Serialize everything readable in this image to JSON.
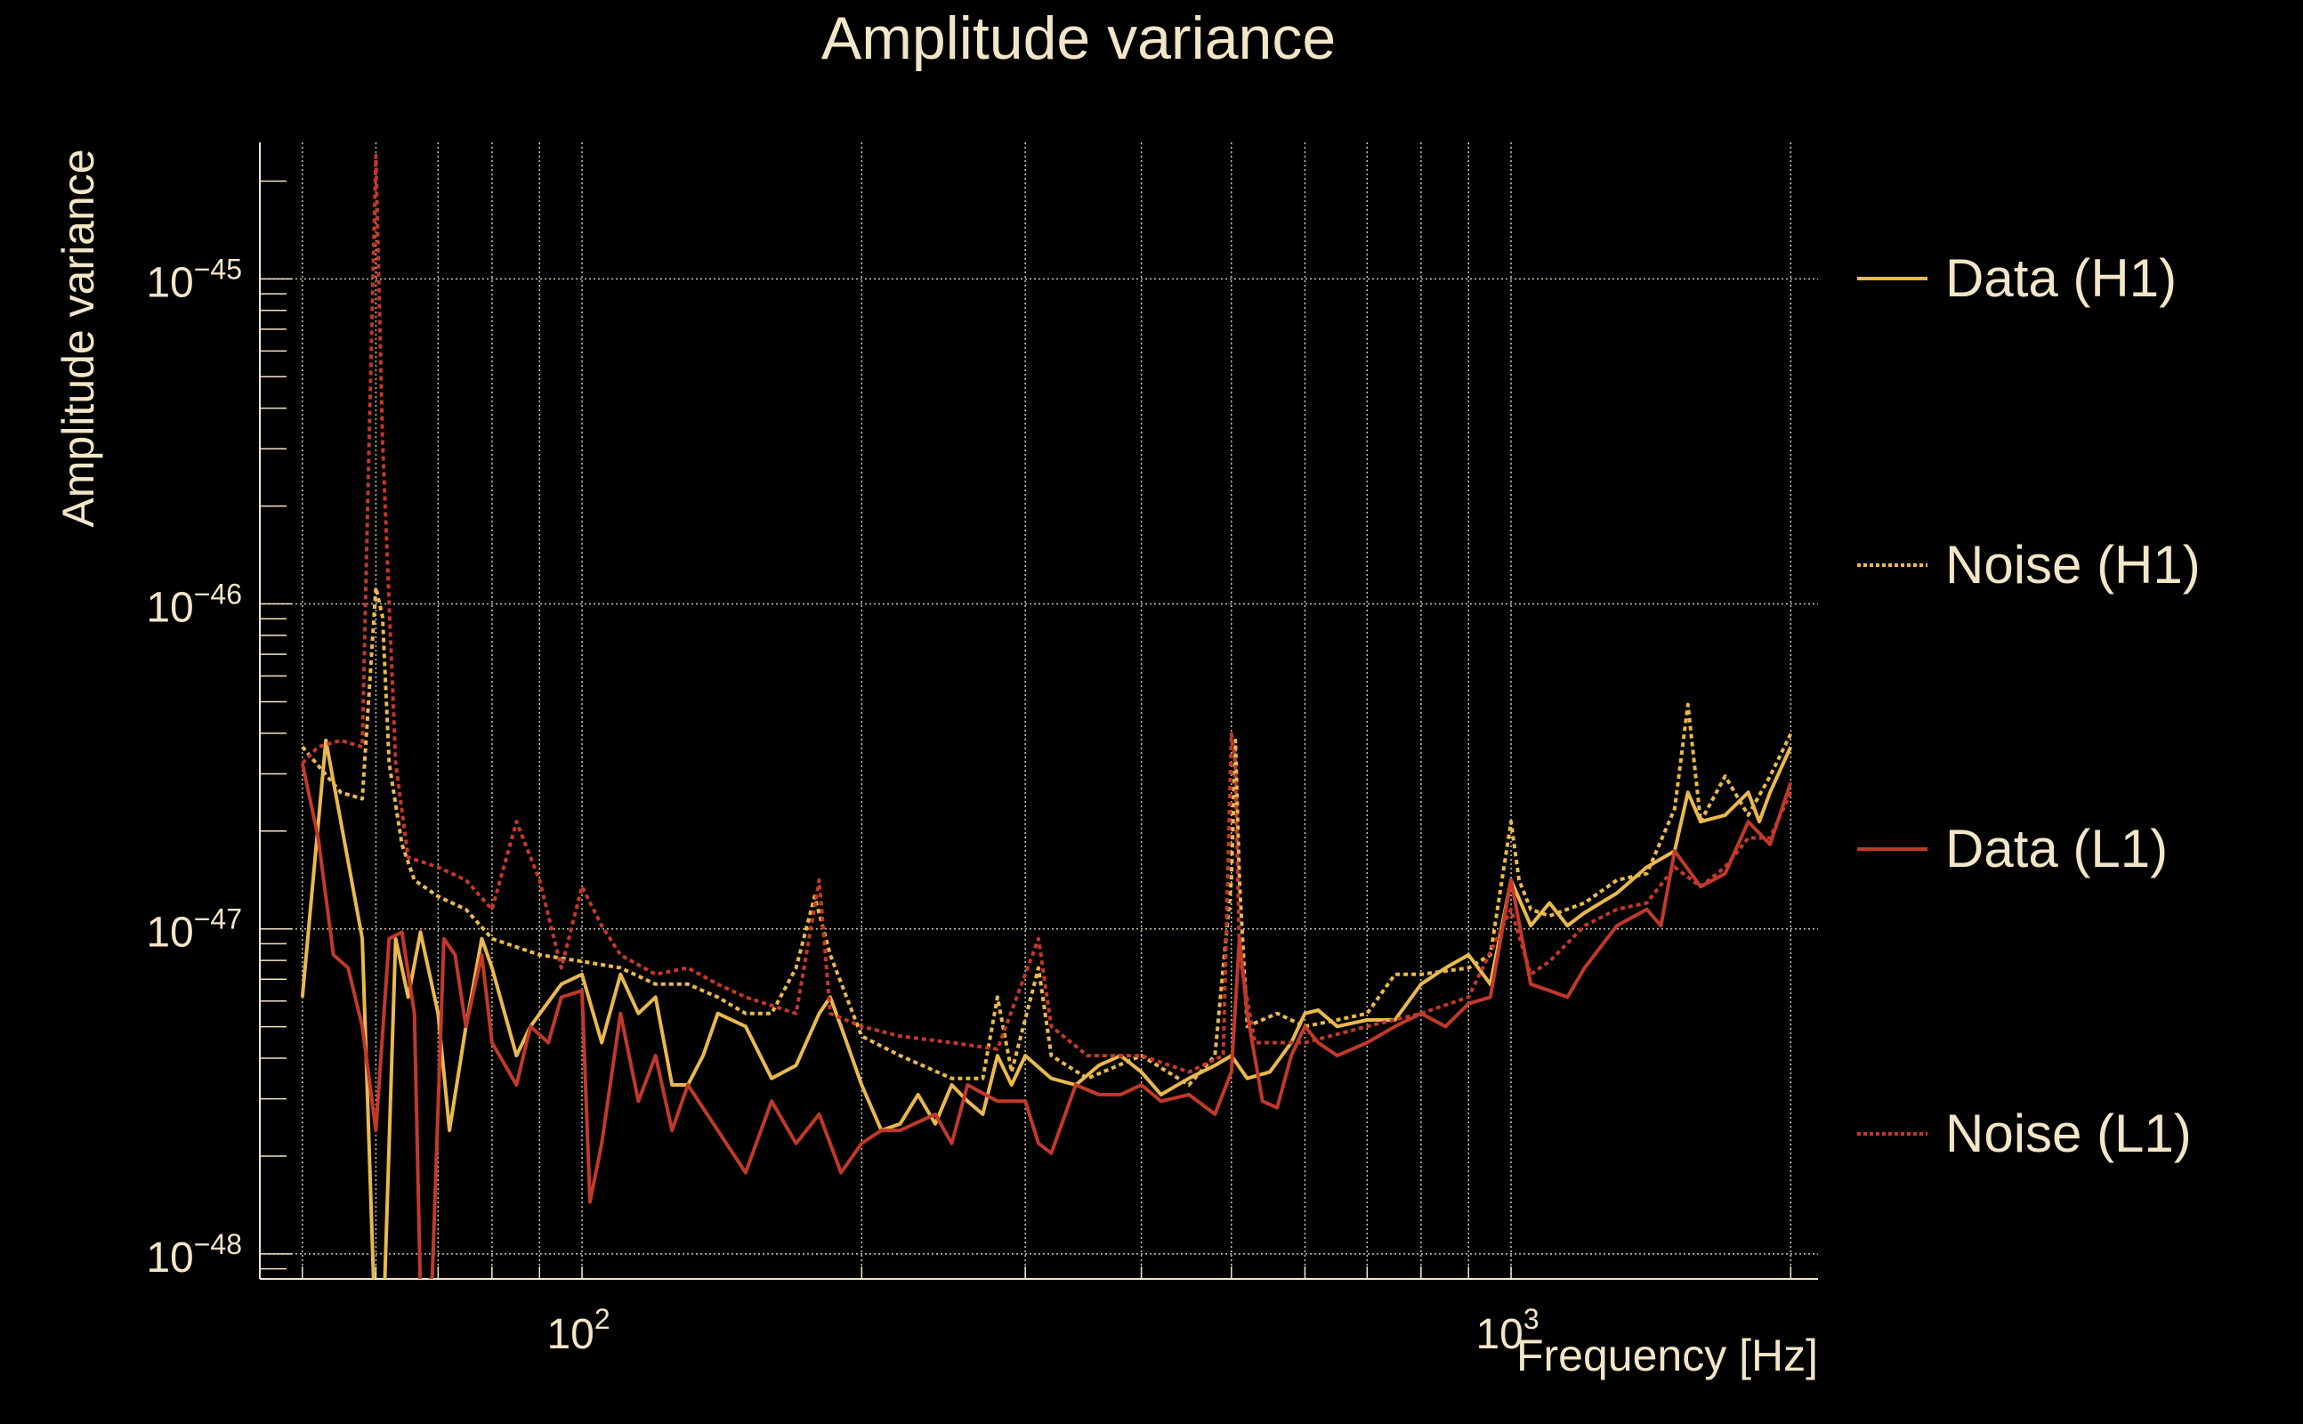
{
  "chart_data": {
    "type": "line",
    "title": "Amplitude variance",
    "xlabel": "Frequency [Hz]",
    "ylabel": "Amplitude variance",
    "xscale": "log",
    "yscale": "log",
    "xlim": [
      45,
      2140
    ],
    "ylim_log10": [
      -48.077,
      -44.58
    ],
    "grid": true,
    "legend_position": "right",
    "colors": {
      "text": "#f3e6c8",
      "h1": "#e9b94e",
      "l1": "#c0392b",
      "grid": "#cfc6b0"
    },
    "x_ticks": [
      {
        "value": 100,
        "base": "10",
        "exp": "2"
      },
      {
        "value": 1000,
        "base": "10",
        "exp": "3"
      }
    ],
    "y_ticks": [
      {
        "log10": -45,
        "base": "10",
        "exp": "−45"
      },
      {
        "log10": -46,
        "base": "10",
        "exp": "−46"
      },
      {
        "log10": -47,
        "base": "10",
        "exp": "−47"
      },
      {
        "log10": -48,
        "base": "10",
        "exp": "−48"
      }
    ],
    "value_note": "y values given as log10(amplitude variance)",
    "series": [
      {
        "name": "Data (H1)",
        "color": "#e9b94e",
        "style": "solid",
        "x": [
          50,
          53,
          55,
          58,
          60,
          61,
          63,
          65,
          67,
          70,
          72,
          75,
          78,
          80,
          85,
          88,
          95,
          100,
          105,
          110,
          115,
          120,
          125,
          130,
          135,
          140,
          150,
          160,
          170,
          180,
          185,
          190,
          200,
          210,
          220,
          230,
          240,
          250,
          260,
          270,
          280,
          290,
          300,
          320,
          340,
          360,
          380,
          400,
          420,
          450,
          480,
          500,
          520,
          550,
          580,
          600,
          620,
          650,
          700,
          750,
          800,
          850,
          900,
          950,
          1000,
          1050,
          1100,
          1150,
          1200,
          1300,
          1400,
          1500,
          1550,
          1600,
          1700,
          1800,
          1850,
          1900,
          2000
        ],
        "log10_y": [
          -47.21,
          -46.42,
          -46.67,
          -47.03,
          -48.3,
          -48.3,
          -47.03,
          -47.21,
          -47.01,
          -47.26,
          -47.62,
          -47.3,
          -47.03,
          -47.12,
          -47.39,
          -47.3,
          -47.17,
          -47.14,
          -47.35,
          -47.14,
          -47.26,
          -47.21,
          -47.48,
          -47.48,
          -47.39,
          -47.26,
          -47.3,
          -47.46,
          -47.42,
          -47.26,
          -47.21,
          -47.3,
          -47.48,
          -47.62,
          -47.6,
          -47.51,
          -47.6,
          -47.48,
          -47.53,
          -47.57,
          -47.39,
          -47.48,
          -47.39,
          -47.46,
          -47.48,
          -47.42,
          -47.39,
          -47.44,
          -47.51,
          -47.46,
          -47.42,
          -47.39,
          -47.46,
          -47.44,
          -47.35,
          -47.26,
          -47.25,
          -47.3,
          -47.28,
          -47.28,
          -47.17,
          -47.12,
          -47.08,
          -47.17,
          -46.85,
          -46.99,
          -46.92,
          -46.99,
          -46.95,
          -46.89,
          -46.81,
          -46.76,
          -46.58,
          -46.67,
          -46.65,
          -46.58,
          -46.67,
          -46.58,
          -46.44
        ]
      },
      {
        "name": "Noise (H1)",
        "color": "#e9b94e",
        "style": "dotted",
        "x": [
          50,
          55,
          58,
          60,
          61,
          62,
          64,
          66,
          70,
          75,
          80,
          90,
          100,
          110,
          120,
          130,
          140,
          150,
          160,
          170,
          178,
          185,
          200,
          220,
          250,
          270,
          280,
          290,
          310,
          320,
          350,
          400,
          450,
          480,
          500,
          505,
          510,
          520,
          560,
          600,
          650,
          700,
          750,
          800,
          900,
          950,
          1000,
          1020,
          1050,
          1100,
          1200,
          1300,
          1400,
          1500,
          1550,
          1600,
          1700,
          1800,
          1900,
          2000
        ],
        "log10_y": [
          -46.44,
          -46.58,
          -46.6,
          -45.95,
          -46.04,
          -46.49,
          -46.74,
          -46.85,
          -46.9,
          -46.94,
          -47.03,
          -47.08,
          -47.1,
          -47.12,
          -47.17,
          -47.17,
          -47.21,
          -47.26,
          -47.26,
          -47.12,
          -46.9,
          -47.08,
          -47.33,
          -47.39,
          -47.46,
          -47.46,
          -47.21,
          -47.44,
          -47.12,
          -47.39,
          -47.46,
          -47.39,
          -47.48,
          -47.39,
          -46.85,
          -46.42,
          -46.85,
          -47.3,
          -47.26,
          -47.3,
          -47.28,
          -47.26,
          -47.14,
          -47.14,
          -47.12,
          -47.08,
          -46.67,
          -46.85,
          -46.94,
          -46.96,
          -46.92,
          -46.85,
          -46.83,
          -46.63,
          -46.31,
          -46.67,
          -46.53,
          -46.65,
          -46.53,
          -46.4
        ]
      },
      {
        "name": "Data (L1)",
        "color": "#c0392b",
        "style": "solid",
        "x": [
          50,
          52,
          54,
          56,
          58,
          60,
          62,
          64,
          66,
          67,
          69,
          71,
          73,
          75,
          78,
          80,
          85,
          88,
          92,
          95,
          100,
          102,
          105,
          110,
          115,
          120,
          125,
          130,
          140,
          150,
          160,
          170,
          180,
          190,
          200,
          210,
          220,
          240,
          250,
          260,
          280,
          300,
          310,
          320,
          340,
          360,
          380,
          400,
          420,
          450,
          480,
          500,
          510,
          520,
          540,
          560,
          580,
          600,
          620,
          650,
          700,
          750,
          800,
          850,
          900,
          950,
          1000,
          1050,
          1100,
          1150,
          1200,
          1300,
          1400,
          1450,
          1500,
          1600,
          1700,
          1800,
          1900,
          2000
        ],
        "log10_y": [
          -46.49,
          -46.72,
          -47.08,
          -47.12,
          -47.3,
          -47.62,
          -47.03,
          -47.01,
          -47.26,
          -48.12,
          -48.07,
          -47.03,
          -47.08,
          -47.3,
          -47.08,
          -47.35,
          -47.48,
          -47.3,
          -47.35,
          -47.21,
          -47.19,
          -47.84,
          -47.66,
          -47.26,
          -47.53,
          -47.39,
          -47.62,
          -47.48,
          -47.62,
          -47.75,
          -47.53,
          -47.66,
          -47.57,
          -47.75,
          -47.66,
          -47.62,
          -47.62,
          -47.57,
          -47.66,
          -47.48,
          -47.53,
          -47.53,
          -47.66,
          -47.69,
          -47.48,
          -47.51,
          -47.51,
          -47.48,
          -47.53,
          -47.51,
          -47.57,
          -47.44,
          -47.03,
          -47.26,
          -47.53,
          -47.55,
          -47.39,
          -47.3,
          -47.35,
          -47.39,
          -47.35,
          -47.3,
          -47.26,
          -47.3,
          -47.23,
          -47.21,
          -46.85,
          -47.17,
          -47.19,
          -47.21,
          -47.12,
          -46.99,
          -46.94,
          -46.99,
          -46.76,
          -46.87,
          -46.83,
          -46.67,
          -46.74,
          -46.55
        ]
      },
      {
        "name": "Noise (L1)",
        "color": "#c0392b",
        "style": "dotted",
        "x": [
          50,
          52,
          55,
          58,
          59,
          60,
          61,
          63,
          65,
          70,
          75,
          80,
          85,
          90,
          95,
          100,
          105,
          110,
          120,
          130,
          140,
          150,
          170,
          180,
          185,
          200,
          220,
          250,
          280,
          310,
          320,
          350,
          400,
          450,
          490,
          500,
          505,
          510,
          530,
          560,
          600,
          700,
          800,
          900,
          1000,
          1050,
          1100,
          1200,
          1300,
          1400,
          1500,
          1600,
          1700,
          1800,
          1900,
          2000
        ],
        "log10_y": [
          -46.49,
          -46.44,
          -46.42,
          -46.44,
          -45.5,
          -44.62,
          -45.5,
          -46.49,
          -46.78,
          -46.81,
          -46.85,
          -46.94,
          -46.67,
          -46.85,
          -47.12,
          -46.87,
          -46.99,
          -47.08,
          -47.14,
          -47.12,
          -47.17,
          -47.21,
          -47.26,
          -46.85,
          -47.26,
          -47.3,
          -47.33,
          -47.35,
          -47.37,
          -47.03,
          -47.3,
          -47.39,
          -47.39,
          -47.44,
          -47.39,
          -46.4,
          -46.49,
          -47.08,
          -47.35,
          -47.35,
          -47.35,
          -47.3,
          -47.26,
          -47.21,
          -46.94,
          -47.14,
          -47.1,
          -46.99,
          -46.94,
          -46.92,
          -46.81,
          -46.87,
          -46.81,
          -46.72,
          -46.72,
          -46.58
        ]
      }
    ]
  }
}
